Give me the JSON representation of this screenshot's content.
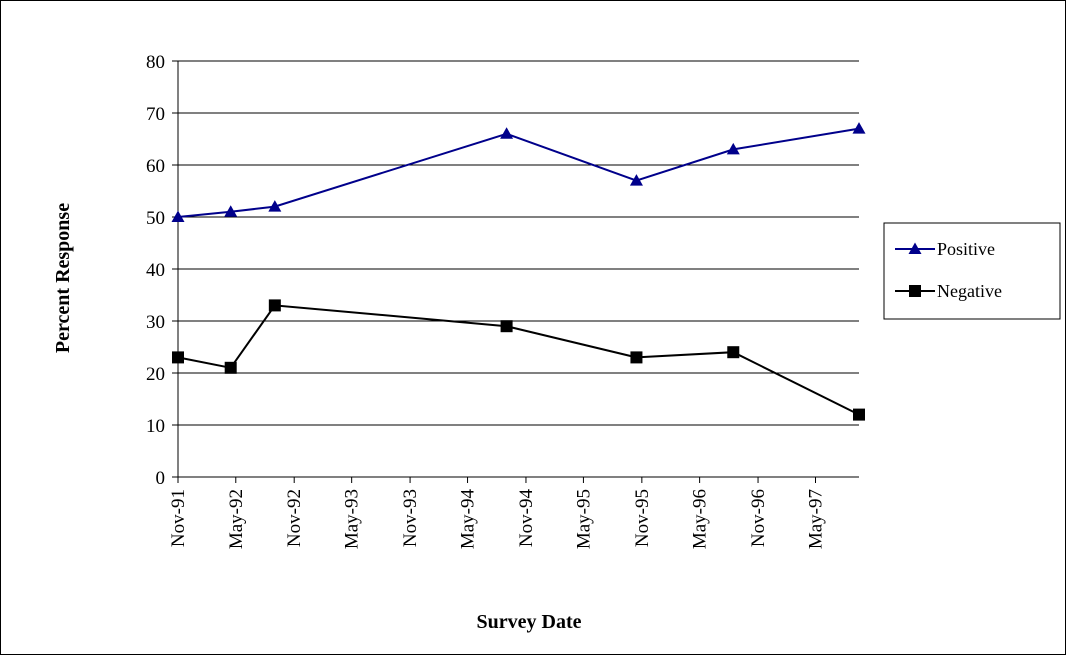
{
  "chart_data": {
    "type": "line",
    "title": "",
    "xlabel": "Survey Date",
    "ylabel": "Percent Response",
    "ylim": [
      0,
      80
    ],
    "yticks": [
      0,
      10,
      20,
      30,
      40,
      50,
      60,
      70,
      80
    ],
    "xlim": [
      "1991-11-01",
      "1997-09-15"
    ],
    "x_tick_labels": [
      "Nov-91",
      "May-92",
      "Nov-92",
      "May-93",
      "Nov-93",
      "May-94",
      "Nov-94",
      "May-95",
      "Nov-95",
      "May-96",
      "Nov-96",
      "May-97"
    ],
    "x_tick_dates": [
      "1991-11-01",
      "1992-05-01",
      "1992-11-01",
      "1993-05-01",
      "1993-11-01",
      "1994-05-01",
      "1994-11-01",
      "1995-05-01",
      "1995-11-01",
      "1996-05-01",
      "1996-11-01",
      "1997-05-01"
    ],
    "grid": "horizontal",
    "legend_position": "right",
    "series": [
      {
        "name": "Positive",
        "color": "#00008B",
        "marker": "triangle",
        "x": [
          "1991-11-01",
          "1992-04-15",
          "1992-09-01",
          "1994-09-01",
          "1995-10-15",
          "1996-08-15",
          "1997-09-15"
        ],
        "values": [
          50,
          51,
          52,
          66,
          57,
          63,
          67
        ]
      },
      {
        "name": "Negative",
        "color": "#000000",
        "marker": "square",
        "x": [
          "1991-11-01",
          "1992-04-15",
          "1992-09-01",
          "1994-09-01",
          "1995-10-15",
          "1996-08-15",
          "1997-09-15"
        ],
        "values": [
          23,
          21,
          33,
          29,
          23,
          24,
          12
        ]
      }
    ]
  }
}
